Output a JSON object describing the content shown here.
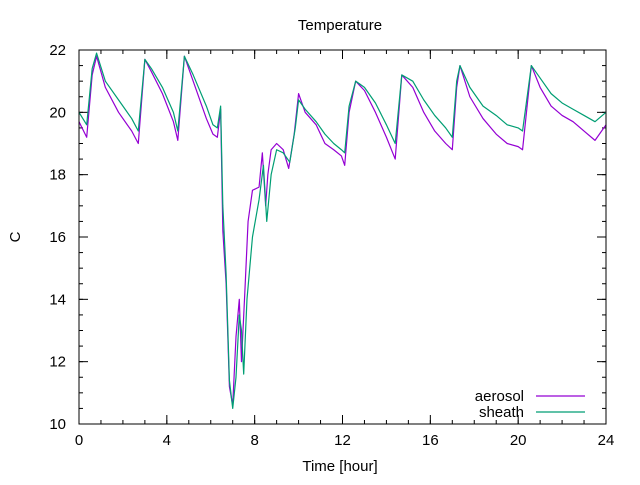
{
  "chart_data": {
    "type": "line",
    "title": "Temperature",
    "xlabel": "Time [hour]",
    "ylabel": "C",
    "xlim": [
      0,
      24
    ],
    "ylim": [
      10,
      22
    ],
    "xticks": [
      0,
      4,
      8,
      12,
      16,
      20,
      24
    ],
    "yticks": [
      10,
      12,
      14,
      16,
      18,
      20,
      22
    ],
    "x_minor_step": 1,
    "y_minor_step": 0.5,
    "grid": false,
    "legend_position": "bottom-right",
    "series": [
      {
        "name": "aerosol",
        "color": "#9400d3",
        "points": [
          [
            0.0,
            19.7
          ],
          [
            0.35,
            19.2
          ],
          [
            0.6,
            21.2
          ],
          [
            0.8,
            21.8
          ],
          [
            1.2,
            20.8
          ],
          [
            1.8,
            20.0
          ],
          [
            2.4,
            19.4
          ],
          [
            2.7,
            19.0
          ],
          [
            3.0,
            21.7
          ],
          [
            3.3,
            21.3
          ],
          [
            3.8,
            20.6
          ],
          [
            4.3,
            19.7
          ],
          [
            4.5,
            19.1
          ],
          [
            4.8,
            21.8
          ],
          [
            5.2,
            21.0
          ],
          [
            5.8,
            19.8
          ],
          [
            6.1,
            19.3
          ],
          [
            6.3,
            19.2
          ],
          [
            6.45,
            20.1
          ],
          [
            6.55,
            16.2
          ],
          [
            6.7,
            14.5
          ],
          [
            6.85,
            11.2
          ],
          [
            7.0,
            10.6
          ],
          [
            7.15,
            12.8
          ],
          [
            7.3,
            14.0
          ],
          [
            7.4,
            12.0
          ],
          [
            7.55,
            14.2
          ],
          [
            7.7,
            16.5
          ],
          [
            7.9,
            17.5
          ],
          [
            8.2,
            17.6
          ],
          [
            8.35,
            18.7
          ],
          [
            8.5,
            17.0
          ],
          [
            8.6,
            18.0
          ],
          [
            8.75,
            18.8
          ],
          [
            9.0,
            19.0
          ],
          [
            9.3,
            18.8
          ],
          [
            9.55,
            18.2
          ],
          [
            9.8,
            19.3
          ],
          [
            10.0,
            20.6
          ],
          [
            10.3,
            20.0
          ],
          [
            10.8,
            19.6
          ],
          [
            11.2,
            19.0
          ],
          [
            11.6,
            18.8
          ],
          [
            11.95,
            18.6
          ],
          [
            12.1,
            18.3
          ],
          [
            12.3,
            20.0
          ],
          [
            12.6,
            21.0
          ],
          [
            13.0,
            20.7
          ],
          [
            13.5,
            20.0
          ],
          [
            14.0,
            19.2
          ],
          [
            14.4,
            18.5
          ],
          [
            14.7,
            21.2
          ],
          [
            15.2,
            20.8
          ],
          [
            15.7,
            20.0
          ],
          [
            16.2,
            19.4
          ],
          [
            16.7,
            19.0
          ],
          [
            17.0,
            18.8
          ],
          [
            17.2,
            20.8
          ],
          [
            17.35,
            21.5
          ],
          [
            17.8,
            20.5
          ],
          [
            18.4,
            19.8
          ],
          [
            19.0,
            19.3
          ],
          [
            19.5,
            19.0
          ],
          [
            20.0,
            18.9
          ],
          [
            20.2,
            18.8
          ],
          [
            20.6,
            21.5
          ],
          [
            21.0,
            20.8
          ],
          [
            21.5,
            20.2
          ],
          [
            22.0,
            19.9
          ],
          [
            22.5,
            19.7
          ],
          [
            23.0,
            19.4
          ],
          [
            23.5,
            19.1
          ],
          [
            24.0,
            19.6
          ]
        ]
      },
      {
        "name": "sheath",
        "color": "#009e73",
        "points": [
          [
            0.0,
            20.0
          ],
          [
            0.35,
            19.6
          ],
          [
            0.6,
            21.4
          ],
          [
            0.8,
            21.9
          ],
          [
            1.2,
            21.0
          ],
          [
            1.8,
            20.4
          ],
          [
            2.4,
            19.8
          ],
          [
            2.7,
            19.4
          ],
          [
            3.0,
            21.7
          ],
          [
            3.3,
            21.4
          ],
          [
            3.8,
            20.8
          ],
          [
            4.3,
            20.0
          ],
          [
            4.5,
            19.4
          ],
          [
            4.8,
            21.8
          ],
          [
            5.2,
            21.2
          ],
          [
            5.8,
            20.2
          ],
          [
            6.1,
            19.6
          ],
          [
            6.3,
            19.5
          ],
          [
            6.45,
            20.2
          ],
          [
            6.55,
            17.0
          ],
          [
            6.7,
            14.8
          ],
          [
            6.85,
            11.4
          ],
          [
            7.0,
            10.5
          ],
          [
            7.15,
            11.5
          ],
          [
            7.3,
            13.5
          ],
          [
            7.4,
            13.0
          ],
          [
            7.5,
            11.6
          ],
          [
            7.65,
            14.0
          ],
          [
            7.9,
            16.0
          ],
          [
            8.2,
            17.2
          ],
          [
            8.4,
            18.3
          ],
          [
            8.55,
            16.5
          ],
          [
            8.75,
            18.0
          ],
          [
            9.0,
            18.8
          ],
          [
            9.3,
            18.7
          ],
          [
            9.6,
            18.4
          ],
          [
            9.85,
            19.5
          ],
          [
            10.0,
            20.4
          ],
          [
            10.3,
            20.1
          ],
          [
            10.8,
            19.7
          ],
          [
            11.2,
            19.3
          ],
          [
            11.6,
            19.0
          ],
          [
            11.95,
            18.8
          ],
          [
            12.1,
            18.7
          ],
          [
            12.3,
            20.2
          ],
          [
            12.6,
            21.0
          ],
          [
            13.0,
            20.8
          ],
          [
            13.5,
            20.3
          ],
          [
            14.0,
            19.6
          ],
          [
            14.4,
            19.0
          ],
          [
            14.7,
            21.2
          ],
          [
            15.2,
            21.0
          ],
          [
            15.7,
            20.4
          ],
          [
            16.2,
            19.9
          ],
          [
            16.7,
            19.5
          ],
          [
            17.0,
            19.2
          ],
          [
            17.2,
            21.0
          ],
          [
            17.35,
            21.5
          ],
          [
            17.8,
            20.8
          ],
          [
            18.4,
            20.2
          ],
          [
            19.0,
            19.9
          ],
          [
            19.5,
            19.6
          ],
          [
            20.0,
            19.5
          ],
          [
            20.2,
            19.4
          ],
          [
            20.6,
            21.5
          ],
          [
            21.0,
            21.1
          ],
          [
            21.5,
            20.6
          ],
          [
            22.0,
            20.3
          ],
          [
            22.5,
            20.1
          ],
          [
            23.0,
            19.9
          ],
          [
            23.5,
            19.7
          ],
          [
            24.0,
            20.0
          ]
        ]
      }
    ]
  }
}
